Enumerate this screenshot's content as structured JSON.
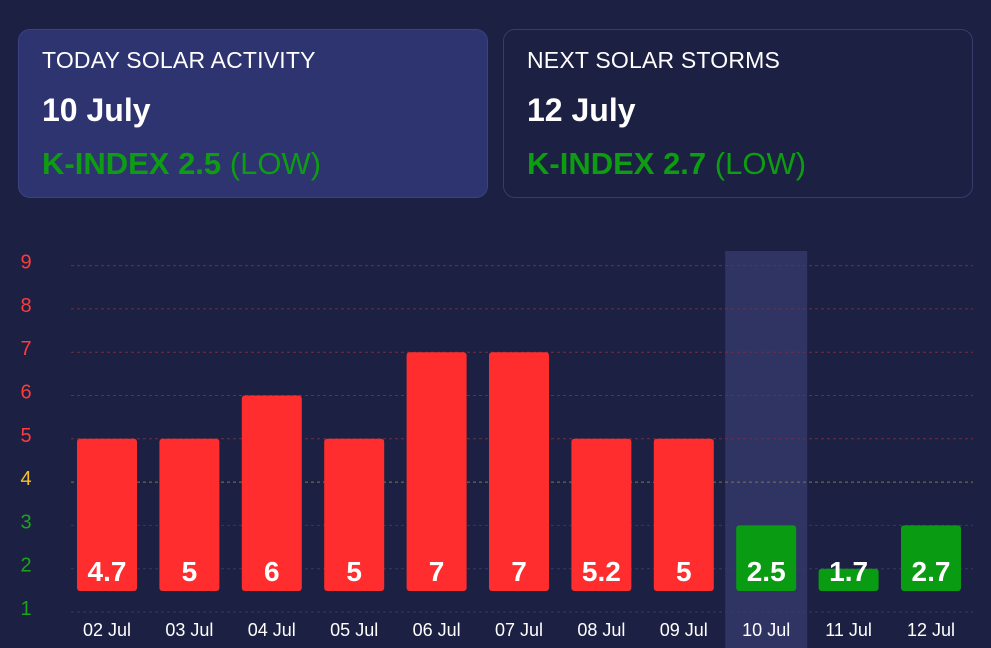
{
  "cards": {
    "today": {
      "title": "TODAY SOLAR ACTIVITY",
      "date": "10 July",
      "index_label": "K-INDEX 2.5",
      "level": "(LOW)"
    },
    "next": {
      "title": "NEXT SOLAR STORMS",
      "date": "12 July",
      "index_label": "K-INDEX 2.7",
      "level": "(LOW)"
    }
  },
  "chart_data": {
    "type": "bar",
    "categories": [
      "02 Jul",
      "03 Jul",
      "04 Jul",
      "05 Jul",
      "06 Jul",
      "07 Jul",
      "08 Jul",
      "09 Jul",
      "10 Jul",
      "11 Jul",
      "12 Jul"
    ],
    "values": [
      4.7,
      5,
      6,
      5,
      7,
      7,
      5.2,
      5,
      2.5,
      1.7,
      2.7
    ],
    "bar_tops": [
      5,
      5,
      6,
      5,
      7,
      7,
      5,
      5,
      3,
      2,
      3
    ],
    "labels": [
      "4.7",
      "5",
      "6",
      "5",
      "7",
      "7",
      "5.2",
      "5",
      "2.5",
      "1.7",
      "2.7"
    ],
    "highlighted_category": "10 Jul",
    "y_ticks": [
      1,
      2,
      3,
      4,
      5,
      6,
      7,
      8,
      9
    ],
    "ylim": [
      1,
      9
    ],
    "grid": true,
    "title": "",
    "xlabel": "",
    "ylabel": "",
    "colors": {
      "high": "#ff2d2d",
      "low": "#099c12",
      "tick_high": "#ff3b3b",
      "tick_mid": "#f2c12e",
      "tick_low": "#1aa51a",
      "grid_high": "#7a2b3b",
      "grid_mid": "#7c7a4a",
      "grid_low": "#343a63",
      "highlight": "#2f3463"
    }
  }
}
